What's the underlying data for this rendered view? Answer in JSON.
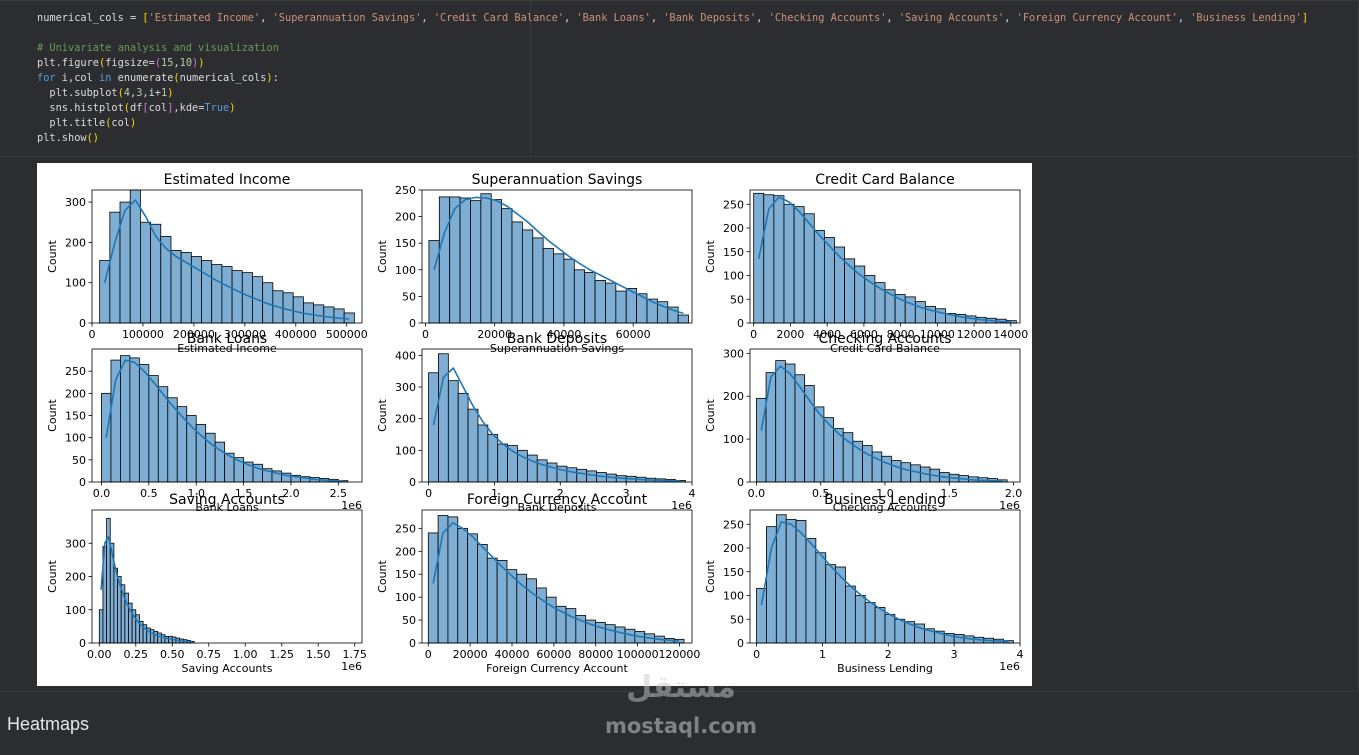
{
  "code": {
    "line1": {
      "var": "numerical_cols",
      "op": " = ",
      "items": [
        "'Estimated Income'",
        "'Superannuation Savings'",
        "'Credit Card Balance'",
        "'Bank Loans'",
        "'Bank Deposits'",
        "'Checking Accounts'",
        "'Saving Accounts'",
        "'Foreign Currency Account'",
        "'Business Lending'"
      ]
    },
    "comment": "# Univariate analysis and visualization",
    "figure": {
      "fn": "plt.figure",
      "arg": "figsize=",
      "a": "15",
      "b": "10"
    },
    "loop": {
      "kw_for": "for",
      "vars": " i,col ",
      "kw_in": "in",
      "fn": " enumerate",
      "arg": "numerical_cols",
      "end": ":"
    },
    "subplot": {
      "fn": "  plt.subplot",
      "a": "4",
      "b": "3",
      "c": "i+",
      "d": "1"
    },
    "histplot": {
      "fn": "  sns.histplot",
      "df": "df",
      "col": "col",
      "kde": ",kde=",
      "true": "True"
    },
    "title": {
      "fn": "  plt.title",
      "arg": "col"
    },
    "show": {
      "fn": "plt.show"
    }
  },
  "heading": "Heatmaps",
  "watermark": {
    "text": "mostaql.com",
    "arabic": "مستقل"
  },
  "chart_data": [
    {
      "type": "bar",
      "title": "Estimated Income",
      "xlabel": "Estimated Income",
      "ylabel": "Count",
      "xlim": [
        0,
        530000
      ],
      "ylim": [
        0,
        330
      ],
      "xticks": [
        0,
        100000,
        200000,
        300000,
        400000,
        500000
      ],
      "xticklabels": [
        "0",
        "100000",
        "200000",
        "300000",
        "400000",
        "500000"
      ],
      "yticks": [
        0,
        100,
        200,
        300
      ],
      "bin_start": 15000,
      "bin_width": 20000,
      "values": [
        155,
        275,
        300,
        330,
        250,
        245,
        215,
        180,
        175,
        165,
        155,
        145,
        140,
        130,
        125,
        115,
        100,
        80,
        75,
        65,
        50,
        45,
        40,
        35,
        25
      ],
      "kde": [
        100,
        200,
        280,
        305,
        265,
        215,
        185,
        165,
        150,
        135,
        120,
        105,
        92,
        80,
        68,
        58,
        48,
        40,
        33,
        27,
        22,
        18,
        15,
        12,
        10
      ]
    },
    {
      "type": "bar",
      "title": "Superannuation Savings",
      "xlabel": "Superannuation Savings",
      "ylabel": "Count",
      "xlim": [
        -1000,
        77000
      ],
      "ylim": [
        0,
        250
      ],
      "xticks": [
        0,
        20000,
        40000,
        60000
      ],
      "xticklabels": [
        "0",
        "20000",
        "40000",
        "60000"
      ],
      "yticks": [
        0,
        50,
        100,
        150,
        200,
        250
      ],
      "bin_start": 1000,
      "bin_width": 3000,
      "values": [
        155,
        237,
        237,
        235,
        230,
        243,
        232,
        215,
        190,
        175,
        160,
        140,
        130,
        120,
        100,
        95,
        80,
        75,
        60,
        65,
        55,
        45,
        40,
        30,
        15
      ],
      "kde": [
        100,
        170,
        215,
        232,
        236,
        235,
        230,
        220,
        205,
        190,
        172,
        155,
        140,
        125,
        112,
        100,
        90,
        80,
        70,
        60,
        50,
        40,
        32,
        24,
        18
      ]
    },
    {
      "type": "bar",
      "title": "Credit Card Balance",
      "xlabel": "Credit Card Balance",
      "ylabel": "Count",
      "xlim": [
        -200,
        14500
      ],
      "ylim": [
        0,
        280
      ],
      "xticks": [
        0,
        2000,
        4000,
        6000,
        8000,
        10000,
        12000,
        14000
      ],
      "xticklabels": [
        "0",
        "2000",
        "4000",
        "6000",
        "8000",
        "10000",
        "12000",
        "14000"
      ],
      "yticks": [
        0,
        50,
        100,
        150,
        200,
        250
      ],
      "bin_start": 0,
      "bin_width": 550,
      "values": [
        273,
        270,
        268,
        250,
        245,
        230,
        195,
        180,
        160,
        135,
        120,
        100,
        85,
        70,
        60,
        55,
        45,
        35,
        30,
        20,
        18,
        15,
        12,
        10,
        8,
        5
      ],
      "kde": [
        135,
        240,
        265,
        255,
        235,
        210,
        185,
        162,
        140,
        120,
        102,
        87,
        73,
        61,
        50,
        41,
        33,
        27,
        22,
        17,
        13,
        10,
        7,
        5,
        3,
        2
      ]
    },
    {
      "type": "bar",
      "title": "Bank Loans",
      "xlabel": "Bank Loans",
      "ylabel": "Count",
      "xlim": [
        -0.1,
        2.75
      ],
      "ylim": [
        0,
        300
      ],
      "xticks": [
        0,
        0.5,
        1.0,
        1.5,
        2.0,
        2.5
      ],
      "xticklabels": [
        "0.0",
        "0.5",
        "1.0",
        "1.5",
        "2.0",
        "2.5"
      ],
      "yticks": [
        0,
        50,
        100,
        150,
        200,
        250
      ],
      "exponent": "1e6",
      "bin_start": 0,
      "bin_width": 0.1,
      "values": [
        200,
        275,
        285,
        280,
        265,
        240,
        215,
        190,
        170,
        150,
        130,
        110,
        90,
        65,
        55,
        45,
        40,
        30,
        25,
        20,
        15,
        12,
        10,
        8,
        6,
        3
      ],
      "kde": [
        100,
        230,
        275,
        270,
        250,
        225,
        198,
        172,
        148,
        125,
        105,
        87,
        72,
        59,
        48,
        39,
        31,
        25,
        20,
        15,
        12,
        9,
        6,
        4,
        3,
        2
      ]
    },
    {
      "type": "bar",
      "title": "Bank Deposits",
      "xlabel": "Bank Deposits",
      "ylabel": "Count",
      "xlim": [
        -0.1,
        4.0
      ],
      "ylim": [
        0,
        420
      ],
      "xticks": [
        0,
        1,
        2,
        3,
        4
      ],
      "xticklabels": [
        "0",
        "1",
        "2",
        "3",
        "4"
      ],
      "yticks": [
        0,
        100,
        200,
        300,
        400
      ],
      "exponent": "1e6",
      "bin_start": 0,
      "bin_width": 0.15,
      "values": [
        345,
        405,
        320,
        280,
        230,
        180,
        150,
        120,
        115,
        100,
        85,
        70,
        60,
        50,
        45,
        40,
        35,
        30,
        25,
        20,
        18,
        15,
        12,
        10,
        8,
        5
      ],
      "kde": [
        180,
        330,
        360,
        300,
        240,
        190,
        150,
        120,
        98,
        80,
        66,
        55,
        46,
        38,
        32,
        27,
        22,
        18,
        15,
        12,
        10,
        8,
        6,
        5,
        4,
        3
      ]
    },
    {
      "type": "bar",
      "title": "Checking Accounts",
      "xlabel": "Checking Accounts",
      "ylabel": "Count",
      "xlim": [
        -0.05,
        2.05
      ],
      "ylim": [
        0,
        310
      ],
      "xticks": [
        0,
        0.5,
        1.0,
        1.5,
        2.0
      ],
      "xticklabels": [
        "0.0",
        "0.5",
        "1.0",
        "1.5",
        "2.0"
      ],
      "yticks": [
        0,
        100,
        200,
        300
      ],
      "exponent": "1e6",
      "bin_start": 0,
      "bin_width": 0.075,
      "values": [
        195,
        255,
        283,
        275,
        250,
        225,
        175,
        150,
        125,
        115,
        95,
        85,
        70,
        60,
        50,
        45,
        40,
        35,
        30,
        22,
        18,
        15,
        12,
        10,
        8,
        5
      ],
      "kde": [
        120,
        245,
        270,
        252,
        222,
        190,
        160,
        135,
        113,
        95,
        79,
        65,
        54,
        44,
        36,
        29,
        24,
        19,
        15,
        12,
        9,
        7,
        5,
        4,
        3,
        2
      ]
    },
    {
      "type": "bar",
      "title": "Saving Accounts",
      "xlabel": "Saving Accounts",
      "ylabel": "Count",
      "xlim": [
        -0.05,
        1.8
      ],
      "ylim": [
        0,
        400
      ],
      "xticks": [
        0,
        0.25,
        0.5,
        0.75,
        1.0,
        1.25,
        1.5,
        1.75
      ],
      "xticklabels": [
        "0.00",
        "0.25",
        "0.50",
        "0.75",
        "1.00",
        "1.25",
        "1.50",
        "1.75"
      ],
      "yticks": [
        0,
        100,
        200,
        300
      ],
      "exponent": "1e6",
      "bin_start": 0,
      "bin_width": 0.025,
      "values": [
        100,
        290,
        375,
        300,
        225,
        200,
        175,
        150,
        120,
        100,
        85,
        65,
        55,
        45,
        40,
        35,
        30,
        25,
        20,
        20,
        18,
        15,
        12,
        10,
        8,
        5
      ],
      "kde": [
        160,
        300,
        320,
        270,
        220,
        180,
        148,
        120,
        98,
        80,
        65,
        53,
        43,
        35,
        29,
        24,
        20,
        17,
        14,
        12,
        10,
        8,
        6,
        5,
        4,
        3
      ]
    },
    {
      "type": "bar",
      "title": "Foreign Currency Account",
      "xlabel": "Foreign Currency Account",
      "ylabel": "Count",
      "xlim": [
        -3000,
        126000
      ],
      "ylim": [
        0,
        290
      ],
      "xticks": [
        0,
        20000,
        40000,
        60000,
        80000,
        100000,
        120000
      ],
      "xticklabels": [
        "0",
        "20000",
        "40000",
        "60000",
        "80000",
        "100000",
        "120000"
      ],
      "yticks": [
        0,
        50,
        100,
        150,
        200,
        250
      ],
      "bin_start": 0,
      "bin_width": 4700,
      "values": [
        240,
        278,
        275,
        250,
        238,
        215,
        185,
        180,
        160,
        150,
        140,
        120,
        100,
        80,
        75,
        60,
        50,
        45,
        40,
        35,
        30,
        25,
        20,
        15,
        10,
        8
      ],
      "kde": [
        130,
        240,
        262,
        250,
        232,
        210,
        188,
        166,
        146,
        127,
        110,
        95,
        81,
        69,
        58,
        49,
        41,
        34,
        28,
        23,
        18,
        14,
        11,
        8,
        6,
        4
      ]
    },
    {
      "type": "bar",
      "title": "Business Lending",
      "xlabel": "Business Lending",
      "ylabel": "Count",
      "xlim": [
        -0.1,
        4.0
      ],
      "ylim": [
        0,
        280
      ],
      "xticks": [
        0,
        1,
        2,
        3,
        4
      ],
      "xticklabels": [
        "0",
        "1",
        "2",
        "3",
        "4"
      ],
      "yticks": [
        0,
        50,
        100,
        150,
        200,
        250
      ],
      "exponent": "1e6",
      "bin_start": 0,
      "bin_width": 0.15,
      "values": [
        115,
        245,
        270,
        260,
        258,
        220,
        190,
        165,
        160,
        120,
        100,
        85,
        75,
        60,
        50,
        45,
        40,
        30,
        25,
        20,
        18,
        15,
        12,
        10,
        8,
        5
      ],
      "kde": [
        80,
        200,
        255,
        250,
        232,
        210,
        186,
        162,
        140,
        120,
        102,
        86,
        72,
        60,
        49,
        40,
        32,
        26,
        21,
        16,
        12,
        9,
        7,
        5,
        4,
        3
      ]
    }
  ]
}
